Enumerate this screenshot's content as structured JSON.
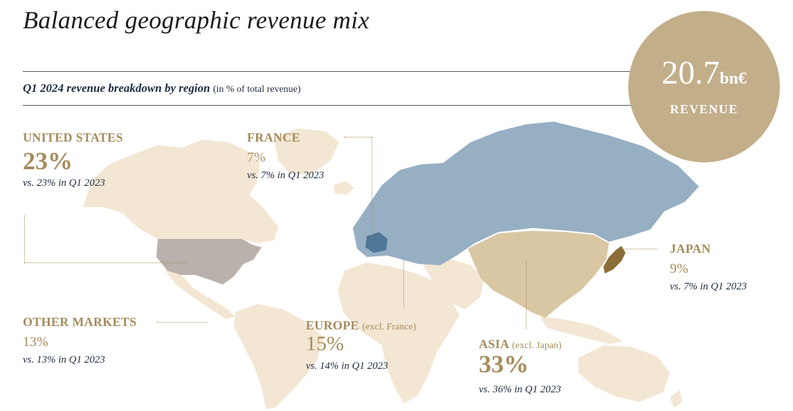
{
  "header": {
    "title": "Balanced geographic revenue mix",
    "subtitle_bold": "Q1 2024 revenue breakdown by region",
    "subtitle_note": "(in % of total revenue)"
  },
  "badge": {
    "value": "20.7",
    "unit": "bn€",
    "label": "REVENUE"
  },
  "regions": {
    "us": {
      "name": "UNITED STATES",
      "pct": "23%",
      "comparison": "vs. 23% in Q1 2023"
    },
    "france": {
      "name": "FRANCE",
      "pct": "7%",
      "comparison": "vs. 7% in Q1 2023"
    },
    "japan": {
      "name": "JAPAN",
      "pct": "9%",
      "comparison": "vs. 7% in Q1 2023"
    },
    "other": {
      "name": "OTHER MARKETS",
      "pct": "13%",
      "comparison": "vs. 13% in Q1 2023"
    },
    "europe": {
      "name": "EUROPE",
      "note": "(excl. France)",
      "pct": "15%",
      "comparison": "vs. 14% in Q1 2023"
    },
    "asia": {
      "name": "ASIA",
      "note": "(excl. Japan)",
      "pct": "33%",
      "comparison": "vs. 36% in Q1 2023"
    }
  },
  "colors": {
    "other_markets": "#f3e6d3",
    "united_states": "#b8b1ac",
    "europe": "#97afc3",
    "france": "#4f7597",
    "asia": "#d9c7a4",
    "japan": "#8a6d37",
    "accent": "#a68c5c",
    "badge": "#c3ae8a"
  }
}
